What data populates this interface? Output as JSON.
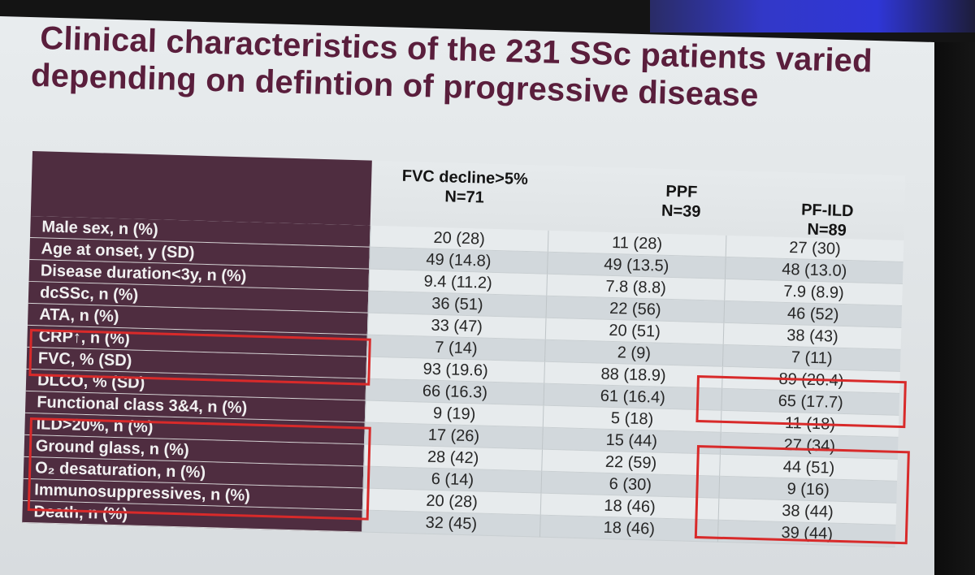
{
  "title": {
    "line1": "Clinical characteristics of the 231 SSc patients varied",
    "line2": "depending on defintion of progressive disease"
  },
  "table": {
    "columns": [
      {
        "label": "FVC decline>5%",
        "n": "N=71"
      },
      {
        "label": "PPF",
        "n": "N=39"
      },
      {
        "label": "PF-ILD",
        "n": "N=89"
      }
    ],
    "rows": [
      {
        "label": "Male sex, n (%)",
        "values": [
          "20 (28)",
          "11 (28)",
          "27 (30)"
        ]
      },
      {
        "label": "Age at onset, y (SD)",
        "values": [
          "49 (14.8)",
          "49 (13.5)",
          "48 (13.0)"
        ]
      },
      {
        "label": "Disease duration<3y, n (%)",
        "values": [
          "9.4 (11.2)",
          "7.8 (8.8)",
          "7.9 (8.9)"
        ]
      },
      {
        "label": "dcSSc, n (%)",
        "values": [
          "36 (51)",
          "22 (56)",
          "46 (52)"
        ]
      },
      {
        "label": "ATA, n (%)",
        "values": [
          "33 (47)",
          "20 (51)",
          "38 (43)"
        ]
      },
      {
        "label": "CRP↑, n (%)",
        "values": [
          "7 (14)",
          "2 (9)",
          "7 (11)"
        ]
      },
      {
        "label": "FVC, % (SD)",
        "values": [
          "93 (19.6)",
          "88 (18.9)",
          "89 (20.4)"
        ]
      },
      {
        "label": "DLCO, % (SD)",
        "values": [
          "66 (16.3)",
          "61 (16.4)",
          "65 (17.7)"
        ]
      },
      {
        "label": "Functional class 3&4, n (%)",
        "values": [
          "9 (19)",
          "5 (18)",
          "11 (18)"
        ]
      },
      {
        "label": "ILD>20%, n (%)",
        "values": [
          "17 (26)",
          "15 (44)",
          "27 (34)"
        ]
      },
      {
        "label": "Ground glass, n (%)",
        "values": [
          "28 (42)",
          "22 (59)",
          "44 (51)"
        ]
      },
      {
        "label": "O₂ desaturation, n (%)",
        "values": [
          "6 (14)",
          "6 (30)",
          "9 (16)"
        ]
      },
      {
        "label": "Immunosuppressives, n (%)",
        "values": [
          "20 (28)",
          "18 (46)",
          "38 (44)"
        ]
      },
      {
        "label": "Death, n (%)",
        "values": [
          "32 (45)",
          "18 (46)",
          "39 (44)"
        ]
      }
    ]
  },
  "colors": {
    "title": "#5a1e3c",
    "label_band": "#4f2d40",
    "highlight_box": "#d82a2a"
  }
}
